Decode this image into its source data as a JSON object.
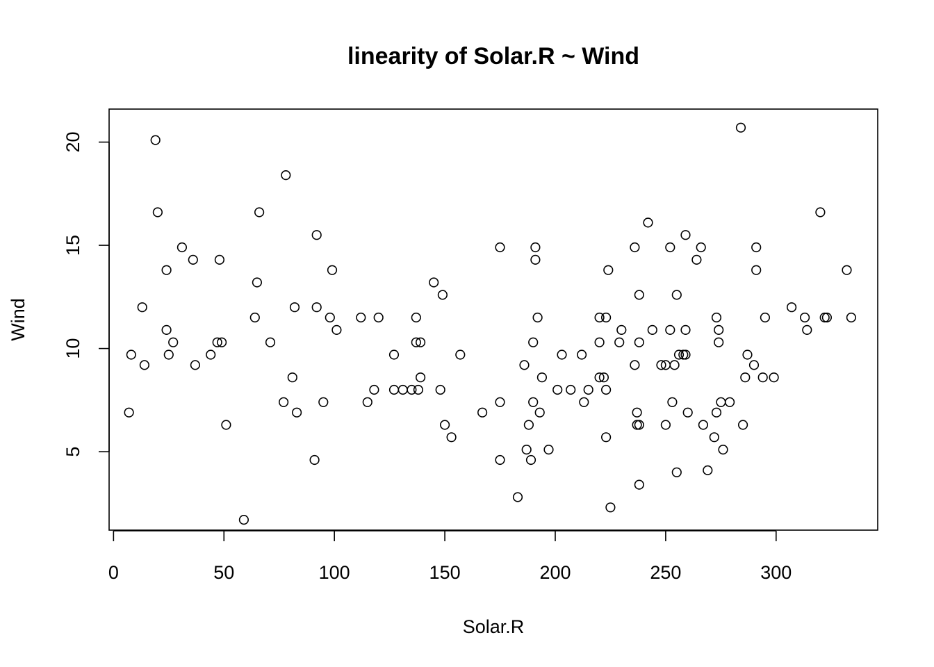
{
  "chart_data": {
    "type": "scatter",
    "title": "linearity of Solar.R ~ Wind",
    "xlabel": "Solar.R",
    "ylabel": "Wind",
    "xlim": [
      -2,
      346
    ],
    "ylim": [
      1.2,
      21.6
    ],
    "xticks": [
      0,
      50,
      100,
      150,
      200,
      250,
      300
    ],
    "yticks": [
      5,
      10,
      15,
      20
    ],
    "grid": false,
    "marker": "open-circle",
    "points": [
      [
        7,
        6.9
      ],
      [
        8,
        9.7
      ],
      [
        13,
        12.0
      ],
      [
        14,
        9.2
      ],
      [
        19,
        20.1
      ],
      [
        20,
        16.6
      ],
      [
        24,
        13.8
      ],
      [
        24,
        10.9
      ],
      [
        25,
        9.7
      ],
      [
        27,
        10.3
      ],
      [
        31,
        14.9
      ],
      [
        36,
        14.3
      ],
      [
        37,
        9.2
      ],
      [
        44,
        9.7
      ],
      [
        47,
        10.3
      ],
      [
        48,
        14.3
      ],
      [
        49,
        10.3
      ],
      [
        51,
        6.3
      ],
      [
        59,
        1.7
      ],
      [
        64,
        11.5
      ],
      [
        65,
        13.2
      ],
      [
        66,
        16.6
      ],
      [
        71,
        10.3
      ],
      [
        77,
        7.4
      ],
      [
        78,
        18.4
      ],
      [
        81,
        8.6
      ],
      [
        82,
        12.0
      ],
      [
        83,
        6.9
      ],
      [
        91,
        4.6
      ],
      [
        92,
        15.5
      ],
      [
        92,
        12.0
      ],
      [
        95,
        7.4
      ],
      [
        98,
        11.5
      ],
      [
        99,
        13.8
      ],
      [
        101,
        10.9
      ],
      [
        112,
        11.5
      ],
      [
        115,
        7.4
      ],
      [
        118,
        8.0
      ],
      [
        120,
        11.5
      ],
      [
        127,
        9.7
      ],
      [
        127,
        8.0
      ],
      [
        131,
        8.0
      ],
      [
        135,
        8.0
      ],
      [
        137,
        11.5
      ],
      [
        137,
        10.3
      ],
      [
        138,
        8.0
      ],
      [
        139,
        10.3
      ],
      [
        139,
        8.6
      ],
      [
        145,
        13.2
      ],
      [
        148,
        8.0
      ],
      [
        149,
        12.6
      ],
      [
        150,
        6.3
      ],
      [
        153,
        5.7
      ],
      [
        157,
        9.7
      ],
      [
        167,
        6.9
      ],
      [
        175,
        14.9
      ],
      [
        175,
        7.4
      ],
      [
        175,
        4.6
      ],
      [
        183,
        2.8
      ],
      [
        186,
        9.2
      ],
      [
        187,
        5.1
      ],
      [
        188,
        6.3
      ],
      [
        189,
        4.6
      ],
      [
        190,
        10.3
      ],
      [
        190,
        7.4
      ],
      [
        191,
        14.9
      ],
      [
        191,
        14.3
      ],
      [
        192,
        11.5
      ],
      [
        193,
        6.9
      ],
      [
        194,
        8.6
      ],
      [
        197,
        5.1
      ],
      [
        201,
        8.0
      ],
      [
        203,
        9.7
      ],
      [
        207,
        8.0
      ],
      [
        212,
        9.7
      ],
      [
        213,
        7.4
      ],
      [
        215,
        8.0
      ],
      [
        220,
        11.5
      ],
      [
        220,
        10.3
      ],
      [
        220,
        8.6
      ],
      [
        222,
        8.6
      ],
      [
        223,
        11.5
      ],
      [
        223,
        8.0
      ],
      [
        223,
        5.7
      ],
      [
        224,
        13.8
      ],
      [
        225,
        2.3
      ],
      [
        229,
        10.3
      ],
      [
        230,
        10.9
      ],
      [
        236,
        14.9
      ],
      [
        236,
        9.2
      ],
      [
        237,
        6.9
      ],
      [
        237,
        6.3
      ],
      [
        238,
        12.6
      ],
      [
        238,
        10.3
      ],
      [
        238,
        6.3
      ],
      [
        238,
        3.4
      ],
      [
        242,
        16.1
      ],
      [
        244,
        10.9
      ],
      [
        248,
        9.2
      ],
      [
        250,
        9.2
      ],
      [
        250,
        6.3
      ],
      [
        252,
        14.9
      ],
      [
        252,
        10.9
      ],
      [
        253,
        7.4
      ],
      [
        254,
        9.2
      ],
      [
        255,
        12.6
      ],
      [
        255,
        4.0
      ],
      [
        256,
        9.7
      ],
      [
        258,
        9.7
      ],
      [
        259,
        15.5
      ],
      [
        259,
        10.9
      ],
      [
        259,
        9.7
      ],
      [
        260,
        6.9
      ],
      [
        264,
        14.3
      ],
      [
        266,
        14.9
      ],
      [
        267,
        6.3
      ],
      [
        269,
        4.1
      ],
      [
        272,
        5.7
      ],
      [
        273,
        11.5
      ],
      [
        273,
        6.9
      ],
      [
        274,
        10.9
      ],
      [
        274,
        10.3
      ],
      [
        275,
        7.4
      ],
      [
        276,
        5.1
      ],
      [
        279,
        7.4
      ],
      [
        284,
        20.7
      ],
      [
        285,
        6.3
      ],
      [
        286,
        8.6
      ],
      [
        287,
        9.7
      ],
      [
        290,
        9.2
      ],
      [
        291,
        14.9
      ],
      [
        291,
        13.8
      ],
      [
        294,
        8.6
      ],
      [
        295,
        11.5
      ],
      [
        299,
        8.6
      ],
      [
        307,
        12.0
      ],
      [
        313,
        11.5
      ],
      [
        314,
        10.9
      ],
      [
        320,
        16.6
      ],
      [
        322,
        11.5
      ],
      [
        323,
        11.5
      ],
      [
        332,
        13.8
      ],
      [
        334,
        11.5
      ]
    ]
  }
}
